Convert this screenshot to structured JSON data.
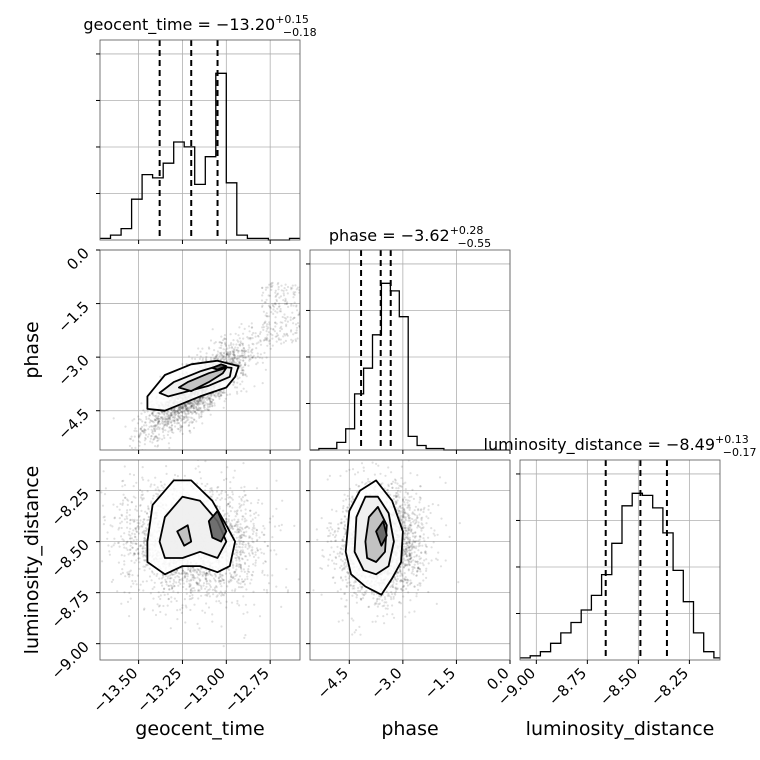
{
  "chart_data": {
    "type": "corner",
    "parameters": [
      "geocent_time",
      "phase",
      "luminosity_distance"
    ],
    "titles": [
      {
        "name": "geocent_time",
        "median": "−13.20",
        "plus": "+0.15",
        "minus": "−0.18"
      },
      {
        "name": "phase",
        "median": "−3.62",
        "plus": "+0.28",
        "minus": "−0.55"
      },
      {
        "name": "luminosity_distance",
        "median": "−8.49",
        "plus": "+0.13",
        "minus": "−0.17"
      }
    ],
    "ranges": {
      "geocent_time": [
        -13.72,
        -12.58
      ],
      "phase": [
        -5.6,
        0.0
      ],
      "luminosity_distance": [
        -9.08,
        -8.1
      ]
    },
    "ticks": {
      "geocent_time": [
        -13.5,
        -13.25,
        -13.0,
        -12.75
      ],
      "phase": [
        0.0,
        -1.5,
        -3.0,
        -4.5
      ],
      "luminosity_distance": [
        -8.25,
        -8.5,
        -8.75,
        -9.0
      ]
    },
    "tick_labels": {
      "geocent_time": [
        "−13.50",
        "−13.25",
        "−13.00",
        "−12.75"
      ],
      "phase": [
        "0.0",
        "−1.5",
        "−3.0",
        "−4.5"
      ],
      "luminosity_distance": [
        "−8.25",
        "−8.50",
        "−8.75",
        "−9.00"
      ]
    },
    "quantiles": {
      "geocent_time": [
        -13.38,
        -13.2,
        -13.05
      ],
      "phase": [
        -4.17,
        -3.62,
        -3.34
      ],
      "luminosity_distance": [
        -8.66,
        -8.49,
        -8.36
      ]
    },
    "histograms": {
      "geocent_time": {
        "edges": [
          -13.72,
          -13.66,
          -13.6,
          -13.54,
          -13.48,
          -13.42,
          -13.36,
          -13.3,
          -13.24,
          -13.18,
          -13.12,
          -13.06,
          -13.0,
          -12.94,
          -12.88,
          -12.82,
          -12.76,
          -12.7,
          -12.64,
          -12.58
        ],
        "counts": [
          1,
          3,
          7,
          25,
          40,
          38,
          47,
          60,
          57,
          34,
          51,
          102,
          35,
          3,
          1,
          1,
          0,
          0,
          1
        ]
      },
      "phase": {
        "edges": [
          -5.6,
          -5.35,
          -5.1,
          -4.85,
          -4.6,
          -4.35,
          -4.1,
          -3.85,
          -3.6,
          -3.35,
          -3.1,
          -2.85,
          -2.6,
          -2.35,
          -2.1,
          -1.85,
          -1.6,
          -1.35,
          -1.1,
          -0.85,
          -0.6,
          -0.35,
          -0.1,
          0.0
        ],
        "counts": [
          0,
          1,
          1,
          5,
          14,
          37,
          54,
          76,
          110,
          105,
          88,
          9,
          3,
          1,
          1,
          0,
          0,
          0,
          0,
          0,
          0,
          0,
          0
        ]
      },
      "luminosity_distance": {
        "edges": [
          -9.08,
          -9.03,
          -8.98,
          -8.93,
          -8.88,
          -8.83,
          -8.78,
          -8.73,
          -8.68,
          -8.63,
          -8.58,
          -8.53,
          -8.48,
          -8.43,
          -8.38,
          -8.33,
          -8.28,
          -8.23,
          -8.18,
          -8.13,
          -8.1
        ],
        "counts": [
          1,
          2,
          4,
          8,
          13,
          18,
          24,
          31,
          41,
          56,
          74,
          80,
          79,
          73,
          61,
          43,
          28,
          13,
          4,
          1
        ]
      }
    },
    "grid": true
  }
}
